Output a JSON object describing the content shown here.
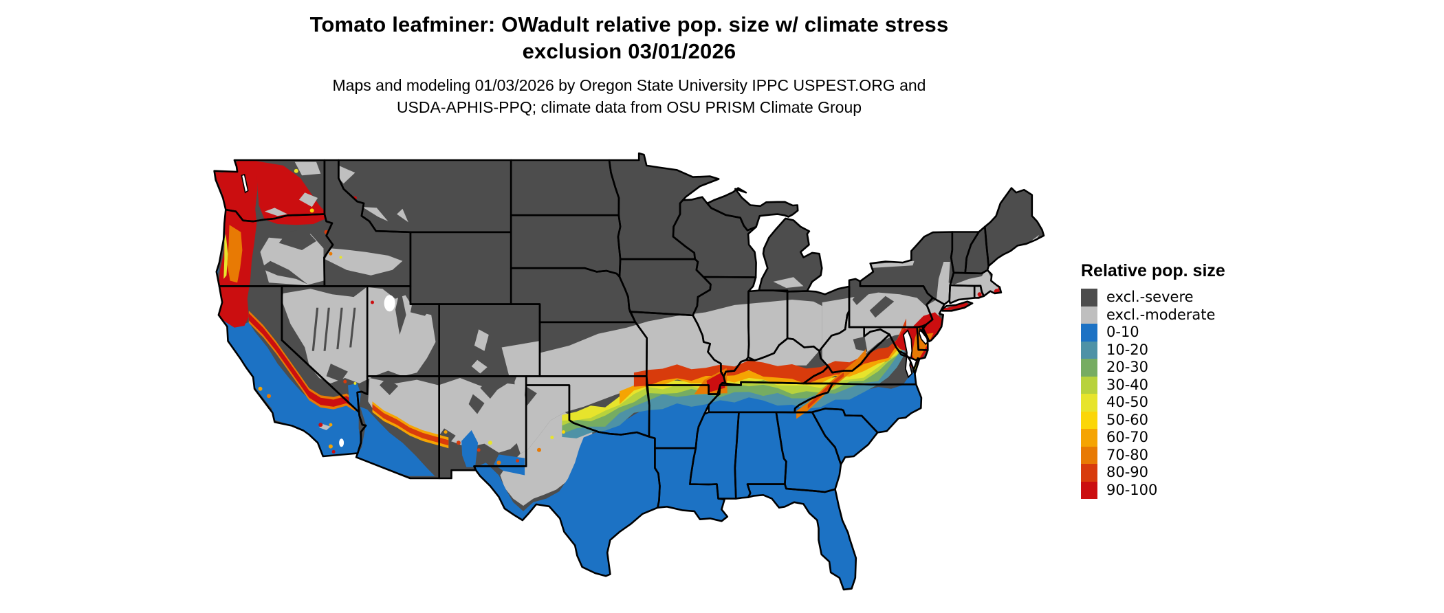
{
  "title": {
    "line1": "Tomato leafminer: OWadult relative pop. size w/ climate stress",
    "line2": "exclusion 03/01/2026"
  },
  "subtitle": {
    "line1": "Maps and modeling 01/03/2026 by Oregon State University IPPC USPEST.ORG and",
    "line2": "USDA-APHIS-PPQ; climate data from OSU PRISM Climate Group"
  },
  "legend": {
    "title": "Relative pop. size",
    "classes": [
      {
        "label": "excl.-severe",
        "color": "#4d4d4d"
      },
      {
        "label": "excl.-moderate",
        "color": "#bfbfbf"
      },
      {
        "label": "0-10",
        "color": "#1c72c4"
      },
      {
        "label": "10-20",
        "color": "#4e92a6"
      },
      {
        "label": "20-30",
        "color": "#76ac62"
      },
      {
        "label": "30-40",
        "color": "#b8d23c"
      },
      {
        "label": "40-50",
        "color": "#e7e42c"
      },
      {
        "label": "50-60",
        "color": "#fbd608"
      },
      {
        "label": "60-70",
        "color": "#f5a403"
      },
      {
        "label": "70-80",
        "color": "#e87a04"
      },
      {
        "label": "80-90",
        "color": "#d83b0c"
      },
      {
        "label": "90-100",
        "color": "#cb0e10"
      }
    ]
  },
  "map": {
    "region": "Contiguous United States",
    "water_color": "#ffffff",
    "state_border_color": "#000000"
  }
}
